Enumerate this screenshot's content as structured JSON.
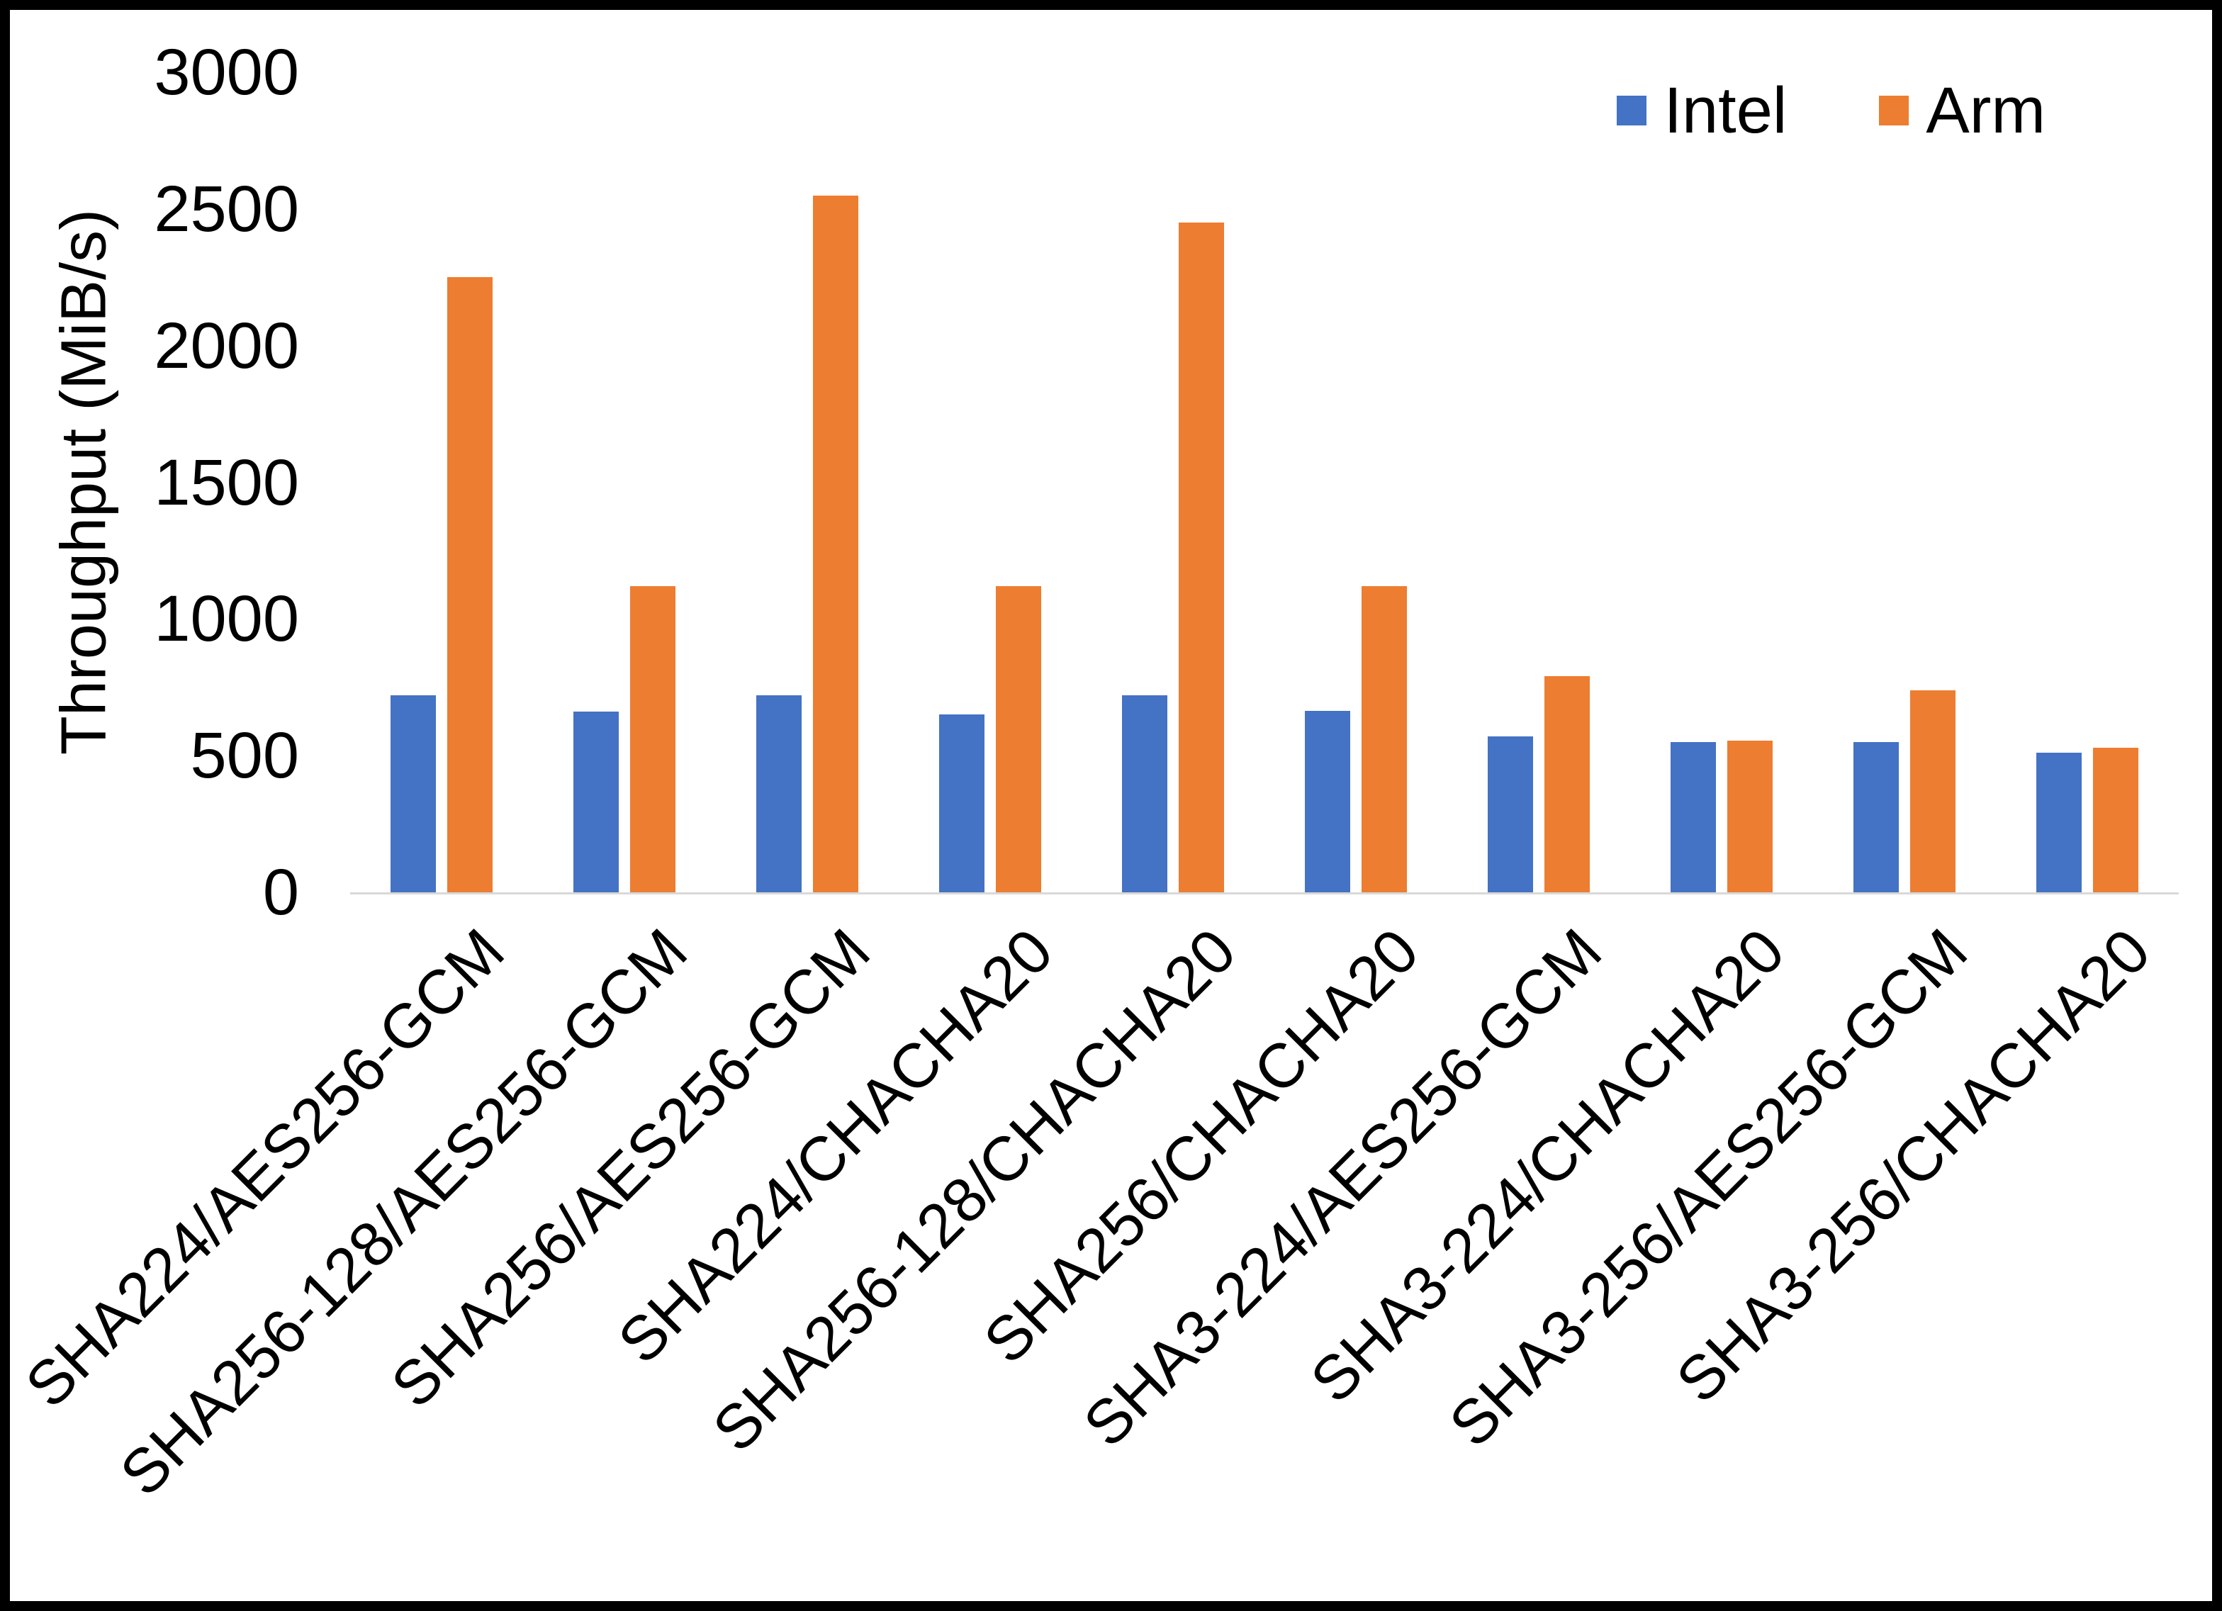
{
  "chart_data": {
    "type": "bar",
    "title": "",
    "xlabel": "",
    "ylabel": "Throughput (MiB/s)",
    "ylim": [
      0,
      3000
    ],
    "yticks": [
      0,
      500,
      1000,
      1500,
      2000,
      2500,
      3000
    ],
    "grid": false,
    "legend_position": "top-right",
    "categories": [
      "SHA224/AES256-GCM",
      "SHA256-128/AES256-GCM",
      "SHA256/AES256-GCM",
      "SHA224/CHACHA20",
      "SHA256-128/CHACHA20",
      "SHA256/CHACHA20",
      "SHA3-224/AES256-GCM",
      "SHA3-224/CHACHA20",
      "SHA3-256/AES256-GCM",
      "SHA3-256/CHACHA20"
    ],
    "series": [
      {
        "name": "Intel",
        "color": "#4472C4",
        "values": [
          720,
          660,
          720,
          650,
          720,
          665,
          570,
          550,
          550,
          510
        ]
      },
      {
        "name": "Arm",
        "color": "#ED7D31",
        "values": [
          2250,
          1120,
          2550,
          1120,
          2450,
          1120,
          790,
          555,
          740,
          530
        ]
      }
    ]
  },
  "colors": {
    "axis_line": "#d9d9d9",
    "text": "#000000",
    "background": "#ffffff",
    "border": "#000000"
  }
}
